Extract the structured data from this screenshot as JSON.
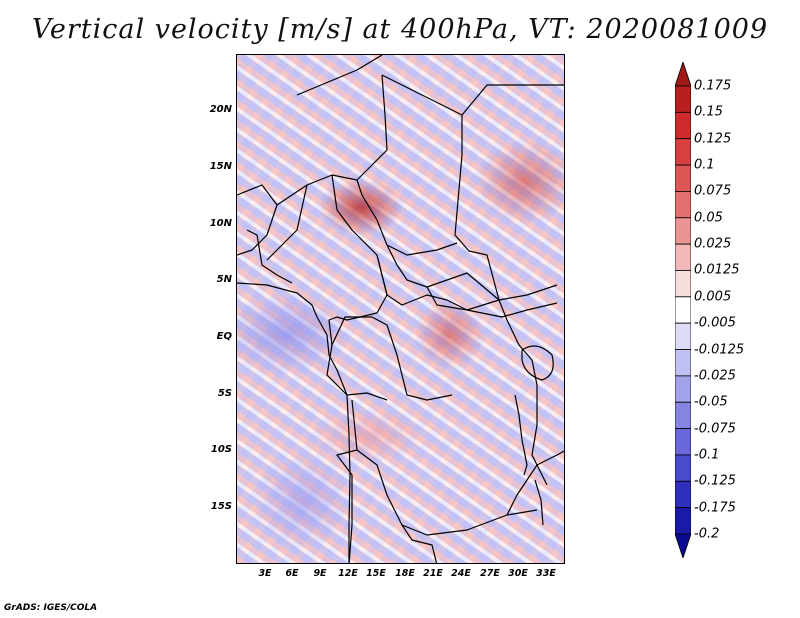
{
  "title": "Vertical velocity [m/s] at 400hPa, VT: 2020081009",
  "latitude_labels": [
    "20N",
    "15N",
    "10N",
    "5N",
    "EQ",
    "5S",
    "10S",
    "15S"
  ],
  "longitude_labels": [
    "3E",
    "6E",
    "9E",
    "12E",
    "15E",
    "18E",
    "21E",
    "24E",
    "27E",
    "30E",
    "33E"
  ],
  "colorbar": {
    "labels": [
      "0.175",
      "0.15",
      "0.125",
      "0.1",
      "0.075",
      "0.05",
      "0.025",
      "0.0125",
      "0.005",
      "-0.005",
      "-0.0125",
      "-0.025",
      "-0.05",
      "-0.075",
      "-0.1",
      "-0.125",
      "-0.175",
      "-0.2"
    ],
    "colors": [
      "#a01818",
      "#b82020",
      "#cc2b2b",
      "#d64040",
      "#dc5656",
      "#e27070",
      "#ea9494",
      "#f2b8b8",
      "#f8dede",
      "#ffffff",
      "#dcdcf8",
      "#c0c0f2",
      "#a3a3ea",
      "#8686e2",
      "#6868d8",
      "#4a4acc",
      "#3030bc",
      "#1a1aa8",
      "#0a0a90"
    ]
  },
  "credit": "GrADS: IGES/COLA"
}
